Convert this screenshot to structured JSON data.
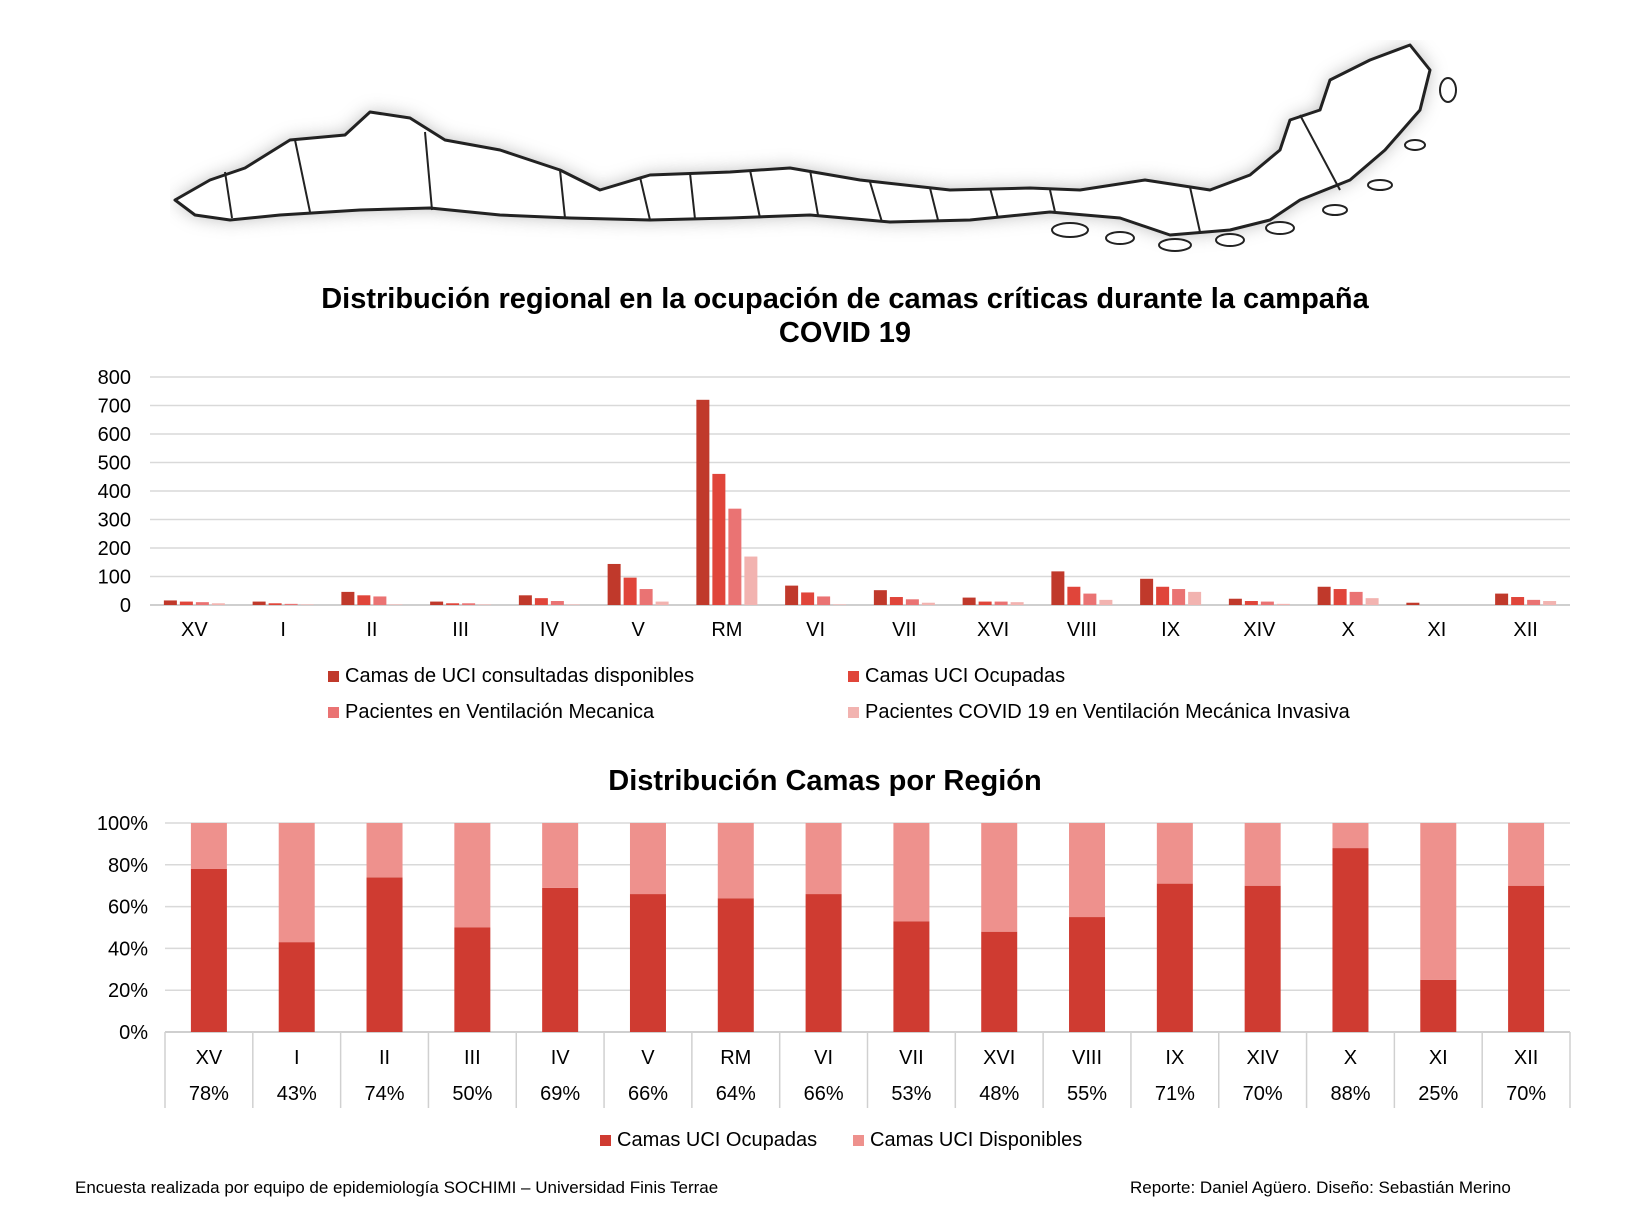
{
  "chart_data": [
    {
      "type": "bar",
      "title": "Distribución regional en la ocupación de camas críticas durante la campaña COVID 19",
      "categories": [
        "XV",
        "I",
        "II",
        "III",
        "IV",
        "V",
        "RM",
        "VI",
        "VII",
        "XVI",
        "VIII",
        "IX",
        "XIV",
        "X",
        "XI",
        "XII"
      ],
      "ylim": [
        0,
        800
      ],
      "yticks": [
        "0",
        "100",
        "200",
        "300",
        "400",
        "500",
        "600",
        "700",
        "800"
      ],
      "grid": true,
      "legend_position": "bottom",
      "series": [
        {
          "name": "Camas de UCI consultadas disponibles",
          "color": "#c0392b",
          "values": [
            16,
            12,
            46,
            12,
            34,
            144,
            720,
            68,
            52,
            26,
            118,
            92,
            22,
            64,
            8,
            40
          ]
        },
        {
          "name": "Camas UCI Ocupadas",
          "color": "#e0453a",
          "values": [
            12,
            6,
            34,
            6,
            24,
            96,
            460,
            44,
            28,
            12,
            64,
            64,
            14,
            56,
            0,
            28
          ]
        },
        {
          "name": "Pacientes en Ventilación Mecanica",
          "color": "#ea7373",
          "values": [
            10,
            4,
            30,
            6,
            14,
            56,
            338,
            30,
            20,
            12,
            40,
            56,
            12,
            46,
            0,
            18
          ]
        },
        {
          "name": "Pacientes COVID 19 en Ventilación Mecánica Invasiva",
          "color": "#f2b3b0",
          "values": [
            6,
            2,
            2,
            2,
            2,
            12,
            170,
            2,
            8,
            10,
            18,
            46,
            4,
            24,
            0,
            14
          ]
        }
      ]
    },
    {
      "type": "bar",
      "stacked": "percent",
      "title": "Distribución Camas por Región",
      "categories": [
        "XV",
        "I",
        "II",
        "III",
        "IV",
        "V",
        "RM",
        "VI",
        "VII",
        "XVI",
        "VIII",
        "IX",
        "XIV",
        "X",
        "XI",
        "XII"
      ],
      "ylim": [
        0,
        100
      ],
      "yticks": [
        "0%",
        "20%",
        "40%",
        "60%",
        "80%",
        "100%"
      ],
      "grid": true,
      "legend_position": "bottom",
      "data_table": [
        "78%",
        "43%",
        "74%",
        "50%",
        "69%",
        "66%",
        "64%",
        "66%",
        "53%",
        "48%",
        "55%",
        "71%",
        "70%",
        "88%",
        "25%",
        "70%"
      ],
      "series": [
        {
          "name": "Camas UCI Ocupadas",
          "color": "#cf3b31",
          "values": [
            78,
            43,
            74,
            50,
            69,
            66,
            64,
            66,
            53,
            48,
            55,
            71,
            70,
            88,
            25,
            70
          ]
        },
        {
          "name": "Camas UCI Disponibles",
          "color": "#ee918d",
          "values": [
            22,
            57,
            26,
            50,
            31,
            34,
            36,
            34,
            47,
            52,
            45,
            29,
            30,
            12,
            75,
            30
          ]
        }
      ]
    }
  ],
  "footer": {
    "left": "Encuesta realizada por equipo de epidemiología SOCHIMI – Universidad Finis Terrae",
    "right": "Reporte: Daniel Agüero. Diseño: Sebastián Merino"
  },
  "map": {
    "icon": "chile-regions-map-icon"
  }
}
